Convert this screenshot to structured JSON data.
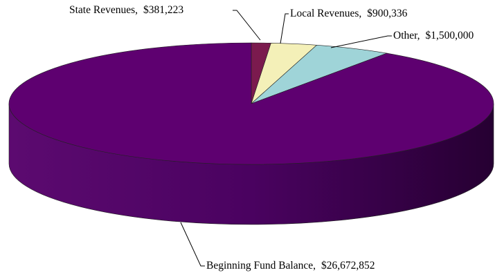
{
  "chart_data": {
    "type": "pie3d",
    "categories": [
      "State Revenues,",
      "Local Revenues,",
      "Other,",
      "Beginning Fund Balance,"
    ],
    "values": [
      381223,
      900336,
      1500000,
      26672852
    ],
    "value_labels": [
      "$381,223",
      "$900,336",
      "$1,500,000",
      "$26,672,852"
    ],
    "colors": [
      "#7b1a4e",
      "#f4f0b8",
      "#9fd4d8",
      "#5e0070"
    ]
  }
}
